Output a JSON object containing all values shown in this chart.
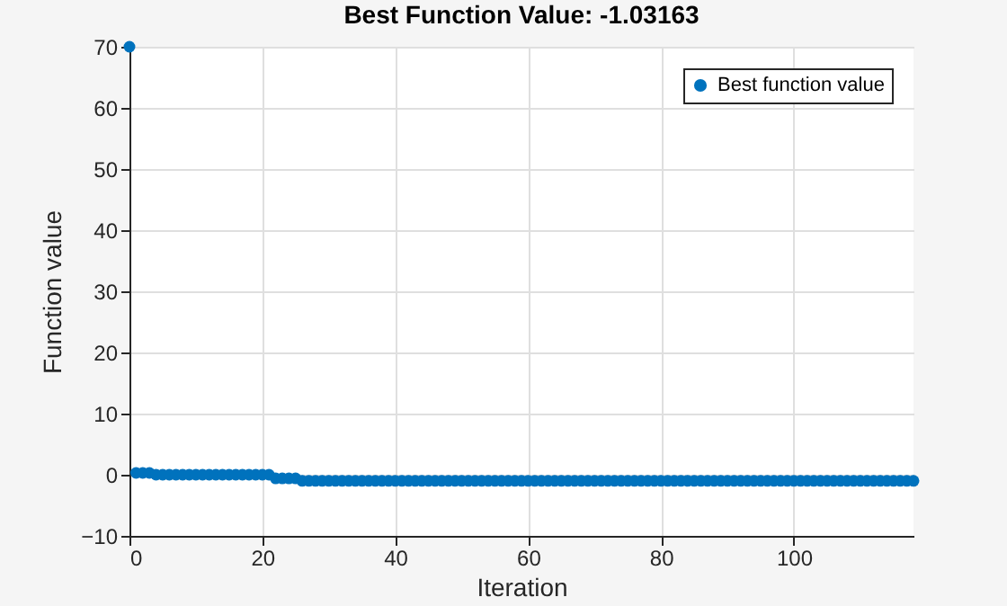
{
  "chart_data": {
    "type": "scatter",
    "title": "Best Function Value: -1.03163",
    "xlabel": "Iteration",
    "ylabel": "Function value",
    "x": [
      0,
      1,
      2,
      3,
      4,
      5,
      6,
      7,
      8,
      9,
      10,
      11,
      12,
      13,
      14,
      15,
      16,
      17,
      18,
      19,
      20,
      21,
      22,
      23,
      24,
      25,
      26,
      27,
      28,
      29,
      30,
      31,
      32,
      33,
      34,
      35,
      36,
      37,
      38,
      39,
      40,
      41,
      42,
      43,
      44,
      45,
      46,
      47,
      48,
      49,
      50,
      51,
      52,
      53,
      54,
      55,
      56,
      57,
      58,
      59,
      60,
      61,
      62,
      63,
      64,
      65,
      66,
      67,
      68,
      69,
      70,
      71,
      72,
      73,
      74,
      75,
      76,
      77,
      78,
      79,
      80,
      81,
      82,
      83,
      84,
      85,
      86,
      87,
      88,
      89,
      90,
      91,
      92,
      93,
      94,
      95,
      96,
      97,
      98,
      99,
      100,
      101,
      102,
      103,
      104,
      105,
      106,
      107,
      108,
      109,
      110,
      111,
      112,
      113,
      114,
      115,
      116,
      117,
      118
    ],
    "series": [
      {
        "name": "Best function value",
        "color": "#0072bd",
        "values": [
          70,
          0.3,
          0.3,
          0.3,
          0,
          0,
          0,
          0,
          0,
          0,
          0,
          0,
          0,
          0,
          0,
          0,
          0,
          0,
          0,
          0,
          0,
          0,
          -0.6,
          -0.6,
          -0.6,
          -0.6,
          -1,
          -1,
          -1,
          -1,
          -1,
          -1,
          -1,
          -1,
          -1,
          -1,
          -1,
          -1,
          -1,
          -1,
          -1,
          -1,
          -1,
          -1,
          -1,
          -1,
          -1,
          -1,
          -1,
          -1,
          -1,
          -1,
          -1,
          -1,
          -1,
          -1,
          -1,
          -1,
          -1,
          -1,
          -1,
          -1,
          -1,
          -1,
          -1,
          -1,
          -1,
          -1,
          -1,
          -1,
          -1,
          -1,
          -1,
          -1,
          -1,
          -1,
          -1,
          -1,
          -1,
          -1,
          -1,
          -1,
          -1,
          -1,
          -1,
          -1,
          -1,
          -1,
          -1,
          -1,
          -1,
          -1,
          -1,
          -1,
          -1,
          -1,
          -1,
          -1,
          -1,
          -1,
          -1,
          -1,
          -1,
          -1,
          -1,
          -1,
          -1,
          -1,
          -1,
          -1,
          -1,
          -1,
          -1,
          -1,
          -1,
          -1,
          -1,
          -1,
          -1
        ]
      }
    ],
    "xlim": [
      0,
      118
    ],
    "ylim": [
      -10,
      70
    ],
    "xticks": [
      0,
      20,
      40,
      60,
      80,
      100
    ],
    "yticks": [
      -10,
      0,
      10,
      20,
      30,
      40,
      50,
      60,
      70
    ],
    "grid": true,
    "legend": "top right",
    "marker": "circle"
  }
}
